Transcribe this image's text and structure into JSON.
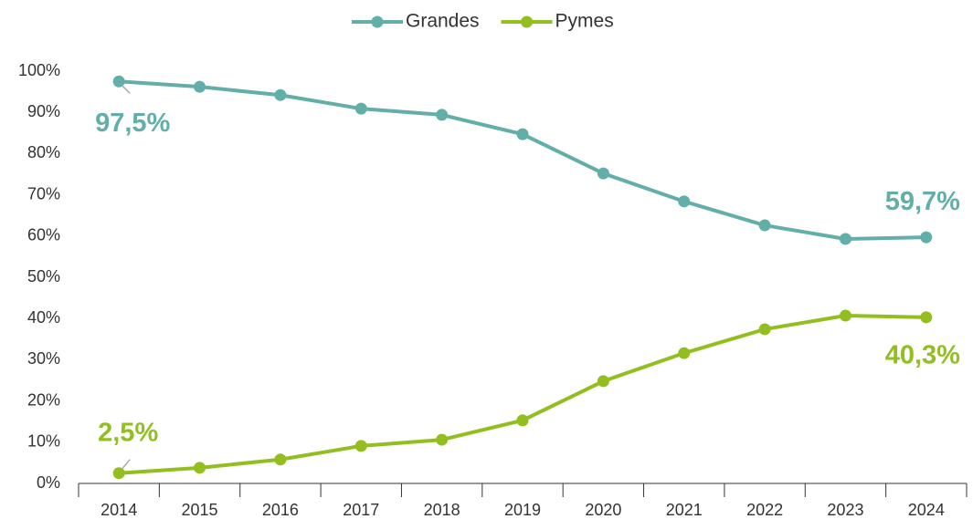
{
  "chart_data": {
    "type": "line",
    "categories": [
      "2014",
      "2015",
      "2016",
      "2017",
      "2018",
      "2019",
      "2020",
      "2021",
      "2022",
      "2023",
      "2024"
    ],
    "series": [
      {
        "name": "Grandes",
        "color": "#62aea8",
        "values": [
          97.5,
          96.2,
          94.2,
          90.9,
          89.4,
          84.7,
          75.2,
          68.4,
          62.6,
          59.3,
          59.7
        ],
        "value_labels": [
          "97,5%",
          null,
          null,
          null,
          null,
          null,
          null,
          null,
          null,
          null,
          "59,7%"
        ]
      },
      {
        "name": "Pymes",
        "color": "#92bf1f",
        "values": [
          2.5,
          3.8,
          5.8,
          9.1,
          10.6,
          15.3,
          24.8,
          31.6,
          37.4,
          40.7,
          40.3
        ],
        "value_labels": [
          "2,5%",
          null,
          null,
          null,
          null,
          null,
          null,
          null,
          null,
          null,
          "40,3%"
        ]
      }
    ],
    "ylim": [
      0,
      100
    ],
    "yticks": [
      {
        "value": 0,
        "label": "0%"
      },
      {
        "value": 10,
        "label": "10%"
      },
      {
        "value": 20,
        "label": "20%"
      },
      {
        "value": 30,
        "label": "30%"
      },
      {
        "value": 40,
        "label": "40%"
      },
      {
        "value": 50,
        "label": "50%"
      },
      {
        "value": 60,
        "label": "60%"
      },
      {
        "value": 70,
        "label": "70%"
      },
      {
        "value": 80,
        "label": "80%"
      },
      {
        "value": 90,
        "label": "90%"
      },
      {
        "value": 100,
        "label": "100%"
      }
    ],
    "legend": "top",
    "grid": false
  }
}
